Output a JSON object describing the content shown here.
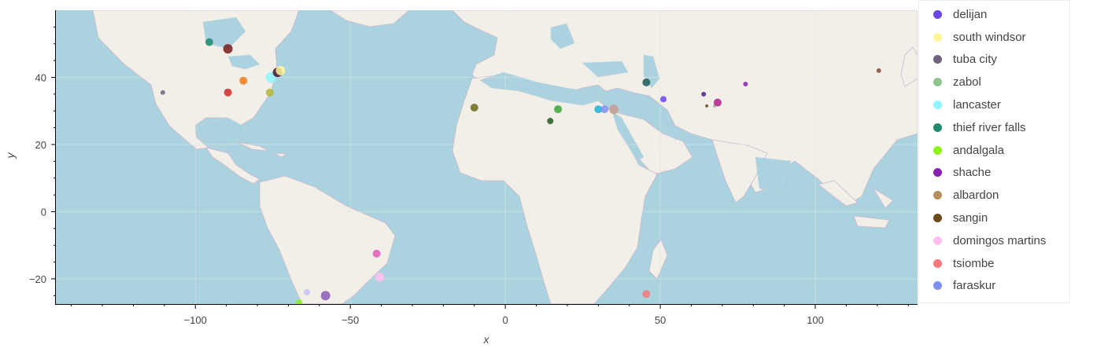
{
  "chart_data": {
    "type": "scatter",
    "title": "",
    "xlabel": "x",
    "ylabel": "y",
    "xlim": [
      -145,
      133
    ],
    "ylim": [
      -27.5,
      60
    ],
    "x_ticks": [
      -100,
      -50,
      0,
      50,
      100
    ],
    "y_ticks": [
      -20,
      0,
      20,
      40
    ],
    "x_tick_labels": [
      "−100",
      "−50",
      "0",
      "50",
      "100"
    ],
    "y_tick_labels": [
      "−20",
      "0",
      "20",
      "40"
    ],
    "background": "world map tiles",
    "grid": true,
    "legend_position": "right",
    "legend": [
      {
        "name": "delijan",
        "color": "#6b45e8"
      },
      {
        "name": "south windsor",
        "color": "#fff59a"
      },
      {
        "name": "tuba city",
        "color": "#6e6280"
      },
      {
        "name": "zabol",
        "color": "#8fc48f"
      },
      {
        "name": "lancaster",
        "color": "#8ff5ff"
      },
      {
        "name": "thief river falls",
        "color": "#1e8a6e"
      },
      {
        "name": "andalgala",
        "color": "#8ef21a"
      },
      {
        "name": "shache",
        "color": "#8a1fb3"
      },
      {
        "name": "albardon",
        "color": "#b58f5e"
      },
      {
        "name": "sangin",
        "color": "#6b4a1e"
      },
      {
        "name": "domingos martins",
        "color": "#ffbff0"
      },
      {
        "name": "tsiombe",
        "color": "#f57a7a"
      },
      {
        "name": "faraskur",
        "color": "#7f8ff2"
      }
    ],
    "points": [
      {
        "x": -95.5,
        "y": 50.5,
        "color": "#1e8a6e",
        "size": 5
      },
      {
        "x": -89.5,
        "y": 48.5,
        "color": "#7a1a1a",
        "size": 6
      },
      {
        "x": -110.5,
        "y": 35.5,
        "color": "#6e6280",
        "size": 3
      },
      {
        "x": -89.5,
        "y": 35.5,
        "color": "#d42a2a",
        "size": 5
      },
      {
        "x": -84.5,
        "y": 39.0,
        "color": "#f27a1a",
        "size": 5
      },
      {
        "x": -75.5,
        "y": 40.0,
        "color": "#8ff5ff",
        "size": 7
      },
      {
        "x": -73.5,
        "y": 41.5,
        "color": "#4a0f2e",
        "size": 6
      },
      {
        "x": -72.5,
        "y": 42.0,
        "color": "#fff59a",
        "size": 6
      },
      {
        "x": -76.0,
        "y": 35.5,
        "color": "#b5b53a",
        "size": 5
      },
      {
        "x": -10.0,
        "y": 31.0,
        "color": "#6b6b1a",
        "size": 5
      },
      {
        "x": 14.5,
        "y": 27.0,
        "color": "#1e5a1e",
        "size": 4
      },
      {
        "x": 17.0,
        "y": 30.5,
        "color": "#3aa63a",
        "size": 5
      },
      {
        "x": 30.0,
        "y": 30.5,
        "color": "#1fb3d4",
        "size": 5
      },
      {
        "x": 32.0,
        "y": 30.5,
        "color": "#7f8ff2",
        "size": 5
      },
      {
        "x": 35.0,
        "y": 30.5,
        "color": "#c49e8f",
        "size": 6
      },
      {
        "x": 45.5,
        "y": 38.5,
        "color": "#1a5a5a",
        "size": 5
      },
      {
        "x": 51.0,
        "y": 33.5,
        "color": "#6b45e8",
        "size": 4
      },
      {
        "x": 64.0,
        "y": 35.0,
        "color": "#4a1f8a",
        "size": 3
      },
      {
        "x": 65.0,
        "y": 31.5,
        "color": "#6b4a1e",
        "size": 2
      },
      {
        "x": 67.5,
        "y": 31.5,
        "color": "#8fc48f",
        "size": 2
      },
      {
        "x": 68.5,
        "y": 32.5,
        "color": "#b31f8a",
        "size": 5
      },
      {
        "x": 77.5,
        "y": 38.0,
        "color": "#8a1fb3",
        "size": 3
      },
      {
        "x": 120.5,
        "y": 42.0,
        "color": "#8a4a3a",
        "size": 3
      },
      {
        "x": -41.5,
        "y": -12.5,
        "color": "#e05ab5",
        "size": 5
      },
      {
        "x": -40.5,
        "y": -19.5,
        "color": "#ffbff0",
        "size": 6
      },
      {
        "x": -64.0,
        "y": -24.0,
        "color": "#c4c4f2",
        "size": 4
      },
      {
        "x": -58.0,
        "y": -25.0,
        "color": "#8a5ab5",
        "size": 6
      },
      {
        "x": -66.5,
        "y": -27.0,
        "color": "#8ef21a",
        "size": 4
      },
      {
        "x": 45.5,
        "y": -24.5,
        "color": "#f57a7a",
        "size": 5
      }
    ]
  }
}
